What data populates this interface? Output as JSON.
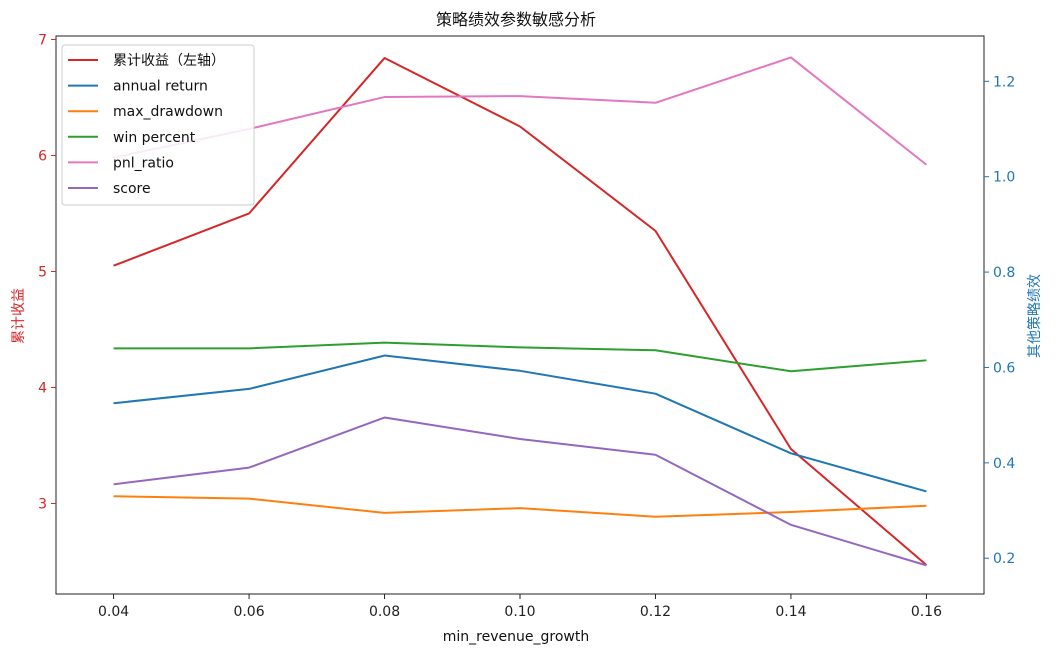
{
  "chart_data": {
    "type": "line",
    "title": "策略绩效参数敏感分析",
    "xlabel": "min_revenue_growth",
    "ylabel_left": "累计收益",
    "ylabel_right": "其他策略绩效",
    "x": [
      0.04,
      0.06,
      0.08,
      0.1,
      0.12,
      0.14,
      0.16
    ],
    "x_tick_labels": [
      "0.04",
      "0.06",
      "0.08",
      "0.10",
      "0.12",
      "0.14",
      "0.16"
    ],
    "xlim": [
      0.0315,
      0.1685
    ],
    "ylim_left": [
      2.22,
      7.03
    ],
    "ylim_right": [
      0.125,
      1.295
    ],
    "left_ticks": [
      3,
      4,
      5,
      6,
      7
    ],
    "left_tick_labels": [
      "3",
      "4",
      "5",
      "6",
      "7"
    ],
    "right_ticks": [
      0.2,
      0.4,
      0.6,
      0.8,
      1.0,
      1.2
    ],
    "right_tick_labels": [
      "0.2",
      "0.4",
      "0.6",
      "0.8",
      "1.0",
      "1.2"
    ],
    "left_axis_color": "#d62728",
    "right_axis_color": "#1f77b4",
    "grid": false,
    "legend_position": "upper-left",
    "series": [
      {
        "name": "累计收益（左轴）",
        "axis": "left",
        "color": "#d62728",
        "values": [
          5.05,
          5.5,
          6.84,
          6.25,
          5.35,
          3.47,
          2.47
        ]
      },
      {
        "name": "annual return",
        "axis": "right",
        "color": "#1f77b4",
        "values": [
          0.525,
          0.555,
          0.625,
          0.593,
          0.545,
          0.42,
          0.34
        ]
      },
      {
        "name": "max_drawdown",
        "axis": "right",
        "color": "#ff7f0e",
        "values": [
          0.33,
          0.325,
          0.295,
          0.305,
          0.287,
          0.297,
          0.31
        ]
      },
      {
        "name": "win percent",
        "axis": "right",
        "color": "#2ca02c",
        "values": [
          0.64,
          0.64,
          0.652,
          0.642,
          0.636,
          0.592,
          0.615
        ]
      },
      {
        "name": "pnl_ratio",
        "axis": "right",
        "color": "#e377c2",
        "values": [
          1.04,
          1.1,
          1.167,
          1.169,
          1.155,
          1.25,
          1.025
        ]
      },
      {
        "name": "score",
        "axis": "right",
        "color": "#9467bd",
        "values": [
          0.355,
          0.39,
          0.495,
          0.45,
          0.417,
          0.27,
          0.185
        ]
      }
    ]
  }
}
